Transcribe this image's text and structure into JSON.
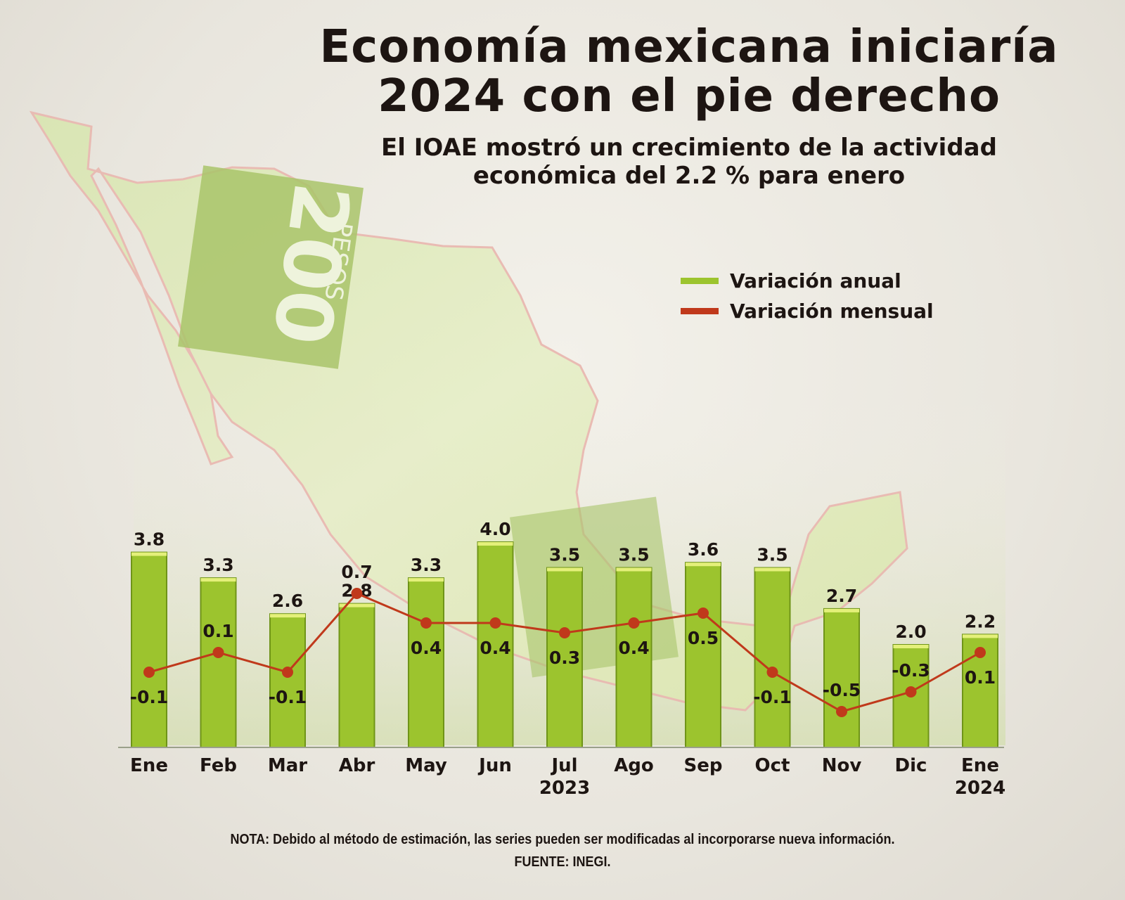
{
  "header": {
    "title_line1": "Economía mexicana iniciaría",
    "title_line2": "2024 con el pie derecho",
    "subtitle_line1": "El IOAE mostró un crecimiento de la actividad",
    "subtitle_line2": "económica del 2.2 % para enero"
  },
  "map": {
    "banknote_value": "200",
    "banknote_currency": "PESOS"
  },
  "colors": {
    "bar": "#9cc42e",
    "bar_edge": "#6f9418",
    "line": "#c0391b",
    "text": "#1d1512"
  },
  "chart_data": {
    "type": "bar",
    "title": "Economía mexicana iniciaría 2024 con el pie derecho",
    "categories": [
      "Ene",
      "Feb",
      "Mar",
      "Abr",
      "May",
      "Jun",
      "Jul",
      "Ago",
      "Sep",
      "Oct",
      "Nov",
      "Dic",
      "Ene"
    ],
    "year_labels": [
      {
        "label": "2023",
        "under_index": 6
      },
      {
        "label": "2024",
        "under_index": 12
      }
    ],
    "series": [
      {
        "name": "Variación anual",
        "type": "bar",
        "values": [
          3.8,
          3.3,
          2.6,
          2.8,
          3.3,
          4.0,
          3.5,
          3.5,
          3.6,
          3.5,
          2.7,
          2.0,
          2.2
        ],
        "labels": [
          "3.8",
          "3.3",
          "2.6",
          "2.8",
          "3.3",
          "4.0",
          "3.5",
          "3.5",
          "3.6",
          "3.5",
          "2.7",
          "2.0",
          "2.2"
        ]
      },
      {
        "name": "Variación mensual",
        "type": "line",
        "values": [
          -0.1,
          0.1,
          -0.1,
          0.7,
          0.4,
          0.4,
          0.3,
          0.4,
          0.5,
          -0.1,
          -0.5,
          -0.3,
          0.1
        ],
        "labels": [
          "-0.1",
          "0.1",
          "-0.1",
          "0.7",
          "0.4",
          "0.4",
          "0.3",
          "0.4",
          "0.5",
          "-0.1",
          "-0.5",
          "-0.3",
          "0.1"
        ]
      }
    ],
    "legend": [
      "Variación anual",
      "Variación mensual"
    ],
    "legend_position": "top-right",
    "grid": false
  },
  "footer": {
    "note": "NOTA: Debido al método de estimación, las series pueden ser modificadas al incorporarse nueva información.",
    "source": "FUENTE: INEGI."
  }
}
